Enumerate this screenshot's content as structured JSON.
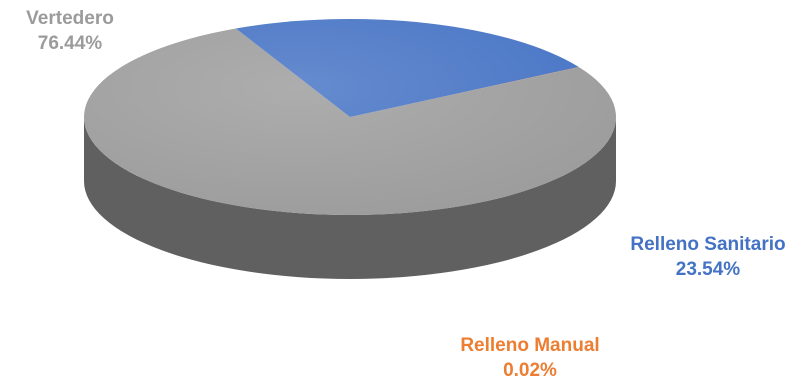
{
  "chart_data": {
    "type": "pie",
    "style": "3d",
    "slices": [
      {
        "label": "Vertedero",
        "value": 76.44,
        "value_text": "76.44%",
        "color": "#9b9b9b",
        "label_color": "#9b9b9b"
      },
      {
        "label": "Relleno Sanitario",
        "value": 23.54,
        "value_text": "23.54%",
        "color": "#4472c4",
        "label_color": "#4472c4"
      },
      {
        "label": "Relleno Manual",
        "value": 0.02,
        "value_text": "0.02%",
        "color": "#ed7d31",
        "label_color": "#ed7d31"
      }
    ],
    "title": "",
    "legend": "none"
  }
}
